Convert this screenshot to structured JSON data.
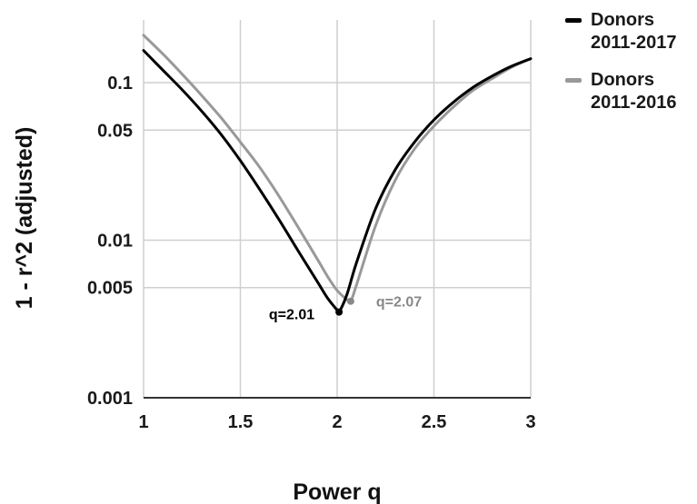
{
  "chart_data": {
    "type": "line",
    "xlabel": "Power q",
    "ylabel": "1 - r^2 (adjusted)",
    "xlim": [
      1,
      3
    ],
    "ylim": [
      0.001,
      0.25
    ],
    "yscale": "log",
    "grid": true,
    "legend_position": "top-right",
    "x_ticks": [
      {
        "value": 1,
        "label": "1"
      },
      {
        "value": 1.5,
        "label": "1.5"
      },
      {
        "value": 2,
        "label": "2"
      },
      {
        "value": 2.5,
        "label": "2.5"
      },
      {
        "value": 3,
        "label": "3"
      }
    ],
    "y_ticks": [
      {
        "value": 0.001,
        "label": "0.001"
      },
      {
        "value": 0.005,
        "label": "0.005"
      },
      {
        "value": 0.01,
        "label": "0.01"
      },
      {
        "value": 0.05,
        "label": "0.05"
      },
      {
        "value": 0.1,
        "label": "0.1"
      }
    ],
    "series": [
      {
        "name": "Donors 2011-2017",
        "color": "#000000",
        "x": [
          1.0,
          1.1,
          1.2,
          1.3,
          1.4,
          1.5,
          1.6,
          1.7,
          1.8,
          1.9,
          1.95,
          2.0,
          2.01,
          2.05,
          2.1,
          2.2,
          2.3,
          2.4,
          2.5,
          2.6,
          2.7,
          2.8,
          2.9,
          3.0
        ],
        "y": [
          0.16,
          0.12,
          0.09,
          0.066,
          0.047,
          0.032,
          0.021,
          0.0135,
          0.0085,
          0.0054,
          0.0043,
          0.0036,
          0.0035,
          0.0045,
          0.0072,
          0.016,
          0.028,
          0.042,
          0.058,
          0.075,
          0.093,
          0.11,
          0.127,
          0.142
        ]
      },
      {
        "name": "Donors 2011-2016",
        "color": "#999999",
        "x": [
          1.0,
          1.1,
          1.2,
          1.3,
          1.4,
          1.5,
          1.6,
          1.7,
          1.8,
          1.9,
          1.95,
          2.0,
          2.05,
          2.07,
          2.1,
          2.2,
          2.3,
          2.4,
          2.5,
          2.6,
          2.7,
          2.8,
          2.9,
          3.0
        ],
        "y": [
          0.2,
          0.152,
          0.113,
          0.083,
          0.06,
          0.042,
          0.029,
          0.019,
          0.012,
          0.0075,
          0.0059,
          0.0048,
          0.0042,
          0.0041,
          0.0052,
          0.0125,
          0.024,
          0.038,
          0.053,
          0.07,
          0.089,
          0.106,
          0.125,
          0.142
        ]
      }
    ],
    "annotations": [
      {
        "text": "q=2.01",
        "x": 2.01,
        "y": 0.0035,
        "color": "#000000",
        "side": "left"
      },
      {
        "text": "q=2.07",
        "x": 2.07,
        "y": 0.0041,
        "color": "#888888",
        "side": "right"
      }
    ]
  },
  "legend": {
    "items": [
      {
        "label": "Donors 2011-2017",
        "color": "#000000"
      },
      {
        "label": "Donors 2011-2016",
        "color": "#999999"
      }
    ]
  }
}
